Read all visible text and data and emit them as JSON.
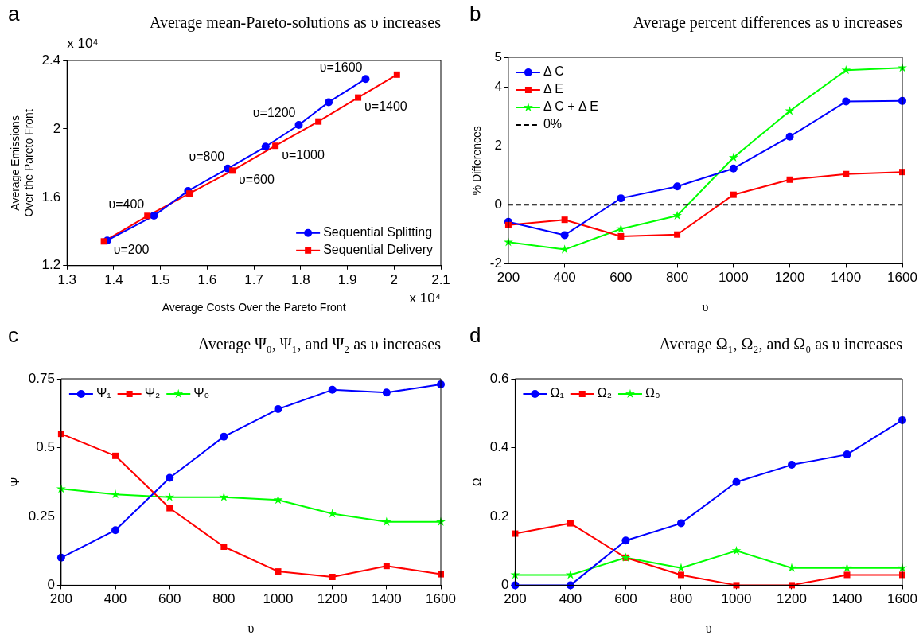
{
  "chart_data": [
    {
      "type": "line",
      "title": "Average mean-Pareto-solutions as υ increases",
      "xlabel": "Average Costs Over the Pareto Front",
      "ylabel": "Average Emissions\nOver the Pareto Front",
      "xlim": [
        1.3,
        2.1
      ],
      "xticks": [
        1.3,
        1.4,
        1.5,
        1.6,
        1.7,
        1.8,
        1.9,
        2,
        2.1
      ],
      "ylim": [
        1.2,
        2.4
      ],
      "yticks": [
        1.2,
        1.6,
        2,
        2.4
      ],
      "grid": false,
      "legend": "bottom right",
      "series": [
        {
          "name": "Sequential Splitting",
          "color": "#0000ff",
          "marker": "circle",
          "x": [
            1.386,
            1.486,
            1.559,
            1.644,
            1.725,
            1.796,
            1.86,
            1.939
          ],
          "values": [
            1.347,
            1.492,
            1.637,
            1.768,
            1.896,
            2.023,
            2.156,
            2.292
          ]
        },
        {
          "name": "Sequential Delivery",
          "color": "#ff0000",
          "marker": "square",
          "x": [
            1.379,
            1.472,
            1.562,
            1.654,
            1.746,
            1.838,
            1.923,
            2.006
          ],
          "values": [
            1.342,
            1.491,
            1.622,
            1.756,
            1.901,
            2.043,
            2.183,
            2.317
          ]
        }
      ],
      "annotations": [
        "a",
        "x 10⁴",
        "x 10⁴",
        {
          "text": "υ=200",
          "x": 1.386,
          "y": 1.347
        },
        {
          "text": "υ=400",
          "x": 1.472,
          "y": 1.491
        },
        {
          "text": "υ=600",
          "x": 1.654,
          "y": 1.756
        },
        {
          "text": "υ=800",
          "x": 1.644,
          "y": 1.768
        },
        {
          "text": "υ=1000",
          "x": 1.746,
          "y": 1.901
        },
        {
          "text": "υ=1200",
          "x": 1.796,
          "y": 2.023
        },
        {
          "text": "υ=1400",
          "x": 1.923,
          "y": 2.183
        },
        {
          "text": "υ=1600",
          "x": 1.939,
          "y": 2.292
        }
      ]
    },
    {
      "type": "line",
      "title": "Average percent differences as υ increases",
      "xlabel": "υ",
      "ylabel": "% Differences",
      "x": [
        200,
        400,
        600,
        800,
        1000,
        1200,
        1400,
        1600
      ],
      "xlim": [
        200,
        1600
      ],
      "xticks": [
        200,
        400,
        600,
        800,
        1000,
        1200,
        1400,
        1600
      ],
      "ylim": [
        -2,
        5
      ],
      "yticks": [
        -2,
        0,
        2,
        4,
        5
      ],
      "grid": false,
      "legend": "top left",
      "series": [
        {
          "name": "Δ C",
          "color": "#0000ff",
          "marker": "circle",
          "values": [
            -0.58,
            -1.03,
            0.22,
            0.62,
            1.23,
            2.31,
            3.5,
            3.52
          ]
        },
        {
          "name": "Δ E",
          "color": "#ff0000",
          "marker": "square",
          "values": [
            -0.69,
            -0.51,
            -1.07,
            -1.01,
            0.34,
            0.85,
            1.04,
            1.11
          ]
        },
        {
          "name": "Δ C + Δ E",
          "color": "#00ff00",
          "marker": "star",
          "values": [
            -1.27,
            -1.52,
            -0.82,
            -0.37,
            1.6,
            3.18,
            4.56,
            4.64
          ]
        }
      ],
      "ref_lines": [
        {
          "axis": "y",
          "value": 0,
          "label": "0%",
          "color": "#000000",
          "line_style": "dashed"
        }
      ],
      "annotations": [
        "b"
      ]
    },
    {
      "type": "line",
      "title": "Average Ψ₀, Ψ₁, and Ψ₂ as υ increases",
      "xlabel": "υ",
      "ylabel": "Ψ",
      "x": [
        200,
        400,
        600,
        800,
        1000,
        1200,
        1400,
        1600
      ],
      "xlim": [
        200,
        1600
      ],
      "xticks": [
        200,
        400,
        600,
        800,
        1000,
        1200,
        1400,
        1600
      ],
      "ylim": [
        0,
        0.75
      ],
      "yticks": [
        0,
        0.25,
        0.5,
        0.75
      ],
      "grid": false,
      "legend": "top left",
      "series": [
        {
          "name": "Ψ₁",
          "color": "#0000ff",
          "marker": "circle",
          "values": [
            0.1,
            0.2,
            0.39,
            0.54,
            0.64,
            0.71,
            0.7,
            0.73
          ]
        },
        {
          "name": "Ψ₂",
          "color": "#ff0000",
          "marker": "square",
          "values": [
            0.55,
            0.47,
            0.28,
            0.14,
            0.05,
            0.03,
            0.07,
            0.04
          ]
        },
        {
          "name": "Ψ₀",
          "color": "#00ff00",
          "marker": "star",
          "values": [
            0.35,
            0.33,
            0.32,
            0.32,
            0.31,
            0.26,
            0.23,
            0.23
          ]
        }
      ],
      "annotations": [
        "c"
      ]
    },
    {
      "type": "line",
      "title": "Average Ω₁, Ω₂, and Ω₀ as υ increases",
      "xlabel": "υ",
      "ylabel": "Ω",
      "x": [
        200,
        400,
        600,
        800,
        1000,
        1200,
        1400,
        1600
      ],
      "xlim": [
        200,
        1600
      ],
      "xticks": [
        200,
        400,
        600,
        800,
        1000,
        1200,
        1400,
        1600
      ],
      "ylim": [
        0,
        0.6
      ],
      "yticks": [
        0,
        0.2,
        0.4,
        0.6
      ],
      "grid": false,
      "legend": "top left",
      "series": [
        {
          "name": "Ω₁",
          "color": "#0000ff",
          "marker": "circle",
          "values": [
            0,
            0,
            0.13,
            0.18,
            0.3,
            0.35,
            0.38,
            0.48
          ]
        },
        {
          "name": "Ω₂",
          "color": "#ff0000",
          "marker": "square",
          "values": [
            0.15,
            0.18,
            0.08,
            0.03,
            0,
            0,
            0.03,
            0.03
          ]
        },
        {
          "name": "Ω₀",
          "color": "#00ff00",
          "marker": "star",
          "values": [
            0.03,
            0.03,
            0.08,
            0.05,
            0.1,
            0.05,
            0.05,
            0.05
          ]
        }
      ],
      "annotations": [
        "d"
      ]
    }
  ]
}
